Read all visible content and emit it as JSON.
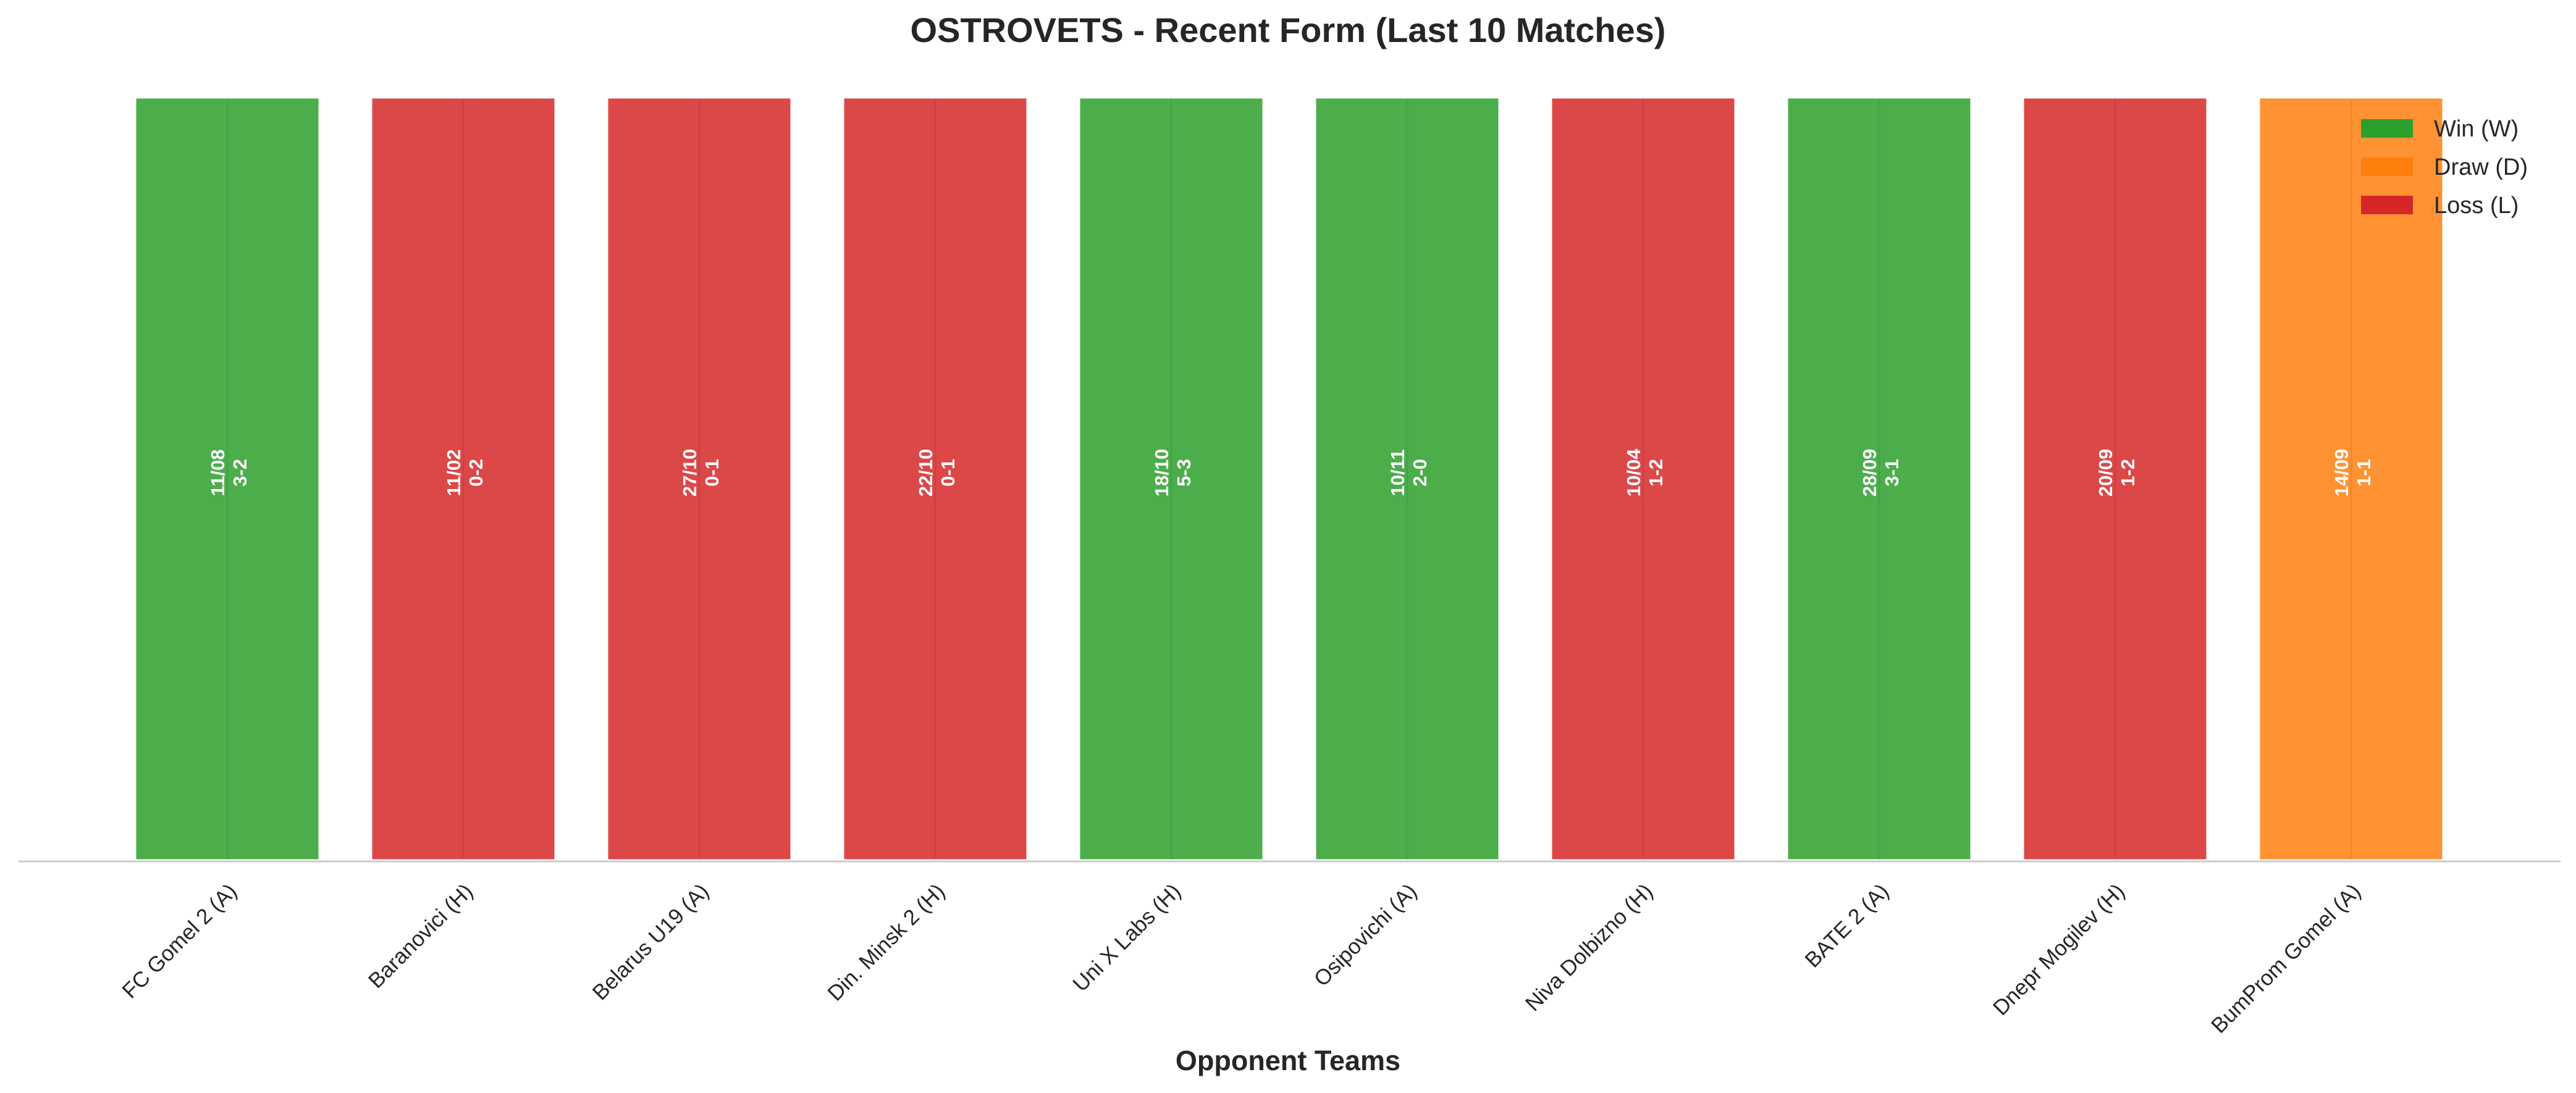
{
  "chart_data": {
    "type": "bar",
    "title": "OSTROVETS - Recent Form (Last 10 Matches)",
    "xlabel": "Opponent Teams",
    "ylabel": "",
    "ylim": [
      0,
      1
    ],
    "grid": false,
    "legend_position": "top-right",
    "categories": [
      "FC Gomel 2 (A)",
      "Baranovici (H)",
      "Belarus U19 (A)",
      "Din. Minsk 2 (H)",
      "Uni X Labs (H)",
      "Osipovichi (A)",
      "Niva Dolbizno (H)",
      "BATE 2 (A)",
      "Dnepr Mogilev (H)",
      "BumProm Gomel (A)"
    ],
    "values": [
      1,
      1,
      1,
      1,
      1,
      1,
      1,
      1,
      1,
      1
    ],
    "results": [
      "W",
      "L",
      "L",
      "L",
      "W",
      "W",
      "L",
      "W",
      "L",
      "D"
    ],
    "dates": [
      "11/08",
      "11/02",
      "27/10",
      "22/10",
      "18/10",
      "10/11",
      "10/04",
      "28/09",
      "20/09",
      "14/09"
    ],
    "scores": [
      "3-2",
      "0-2",
      "0-1",
      "0-1",
      "5-3",
      "2-0",
      "1-2",
      "3-1",
      "1-2",
      "1-1"
    ],
    "legend": [
      {
        "key": "W",
        "label": "Win (W)",
        "color": "#2ca02c"
      },
      {
        "key": "D",
        "label": "Draw (D)",
        "color": "#ff7f0e"
      },
      {
        "key": "L",
        "label": "Loss (L)",
        "color": "#d62728"
      }
    ],
    "colors": {
      "W": "#2ca02c",
      "D": "#ff7f0e",
      "L": "#d62728"
    }
  }
}
